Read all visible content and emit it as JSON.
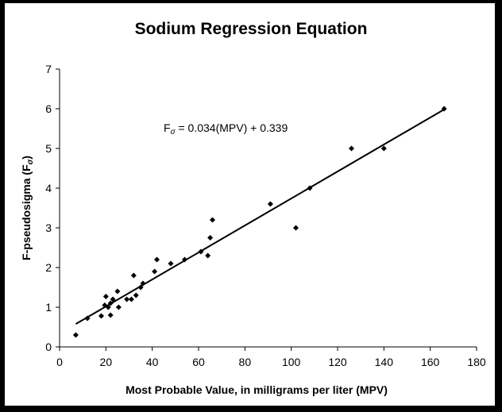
{
  "chart_data": {
    "type": "scatter",
    "title": "Sodium Regression Equation",
    "xlabel": "Most Probable Value, in milligrams per liter (MPV)",
    "ylabel_main": "F-pseudosigma (F",
    "ylabel_sub": "σ",
    "ylabel_close": ")",
    "xlim": [
      0,
      180
    ],
    "ylim": [
      0,
      7
    ],
    "xticks": [
      0,
      20,
      40,
      60,
      80,
      100,
      120,
      140,
      160,
      180
    ],
    "yticks": [
      0,
      1,
      2,
      3,
      4,
      5,
      6,
      7
    ],
    "grid": false,
    "legend": "none",
    "equation": {
      "prefix": "F",
      "sub": "σ",
      "rest": " = 0.034(MPV) + 0.339"
    },
    "regression": {
      "slope": 0.034,
      "intercept": 0.339,
      "x_range": [
        7,
        166
      ]
    },
    "points": [
      {
        "x": 7,
        "y": 0.3
      },
      {
        "x": 12,
        "y": 0.72
      },
      {
        "x": 18,
        "y": 0.78
      },
      {
        "x": 19.5,
        "y": 1.05
      },
      {
        "x": 20,
        "y": 1.27
      },
      {
        "x": 21,
        "y": 1.0
      },
      {
        "x": 22,
        "y": 0.8
      },
      {
        "x": 22,
        "y": 1.1
      },
      {
        "x": 23,
        "y": 1.2
      },
      {
        "x": 25,
        "y": 1.4
      },
      {
        "x": 25.5,
        "y": 1.0
      },
      {
        "x": 29,
        "y": 1.2
      },
      {
        "x": 31,
        "y": 1.2
      },
      {
        "x": 32,
        "y": 1.8
      },
      {
        "x": 33,
        "y": 1.3
      },
      {
        "x": 35,
        "y": 1.5
      },
      {
        "x": 36,
        "y": 1.6
      },
      {
        "x": 41,
        "y": 1.9
      },
      {
        "x": 42,
        "y": 2.2
      },
      {
        "x": 48,
        "y": 2.1
      },
      {
        "x": 54,
        "y": 2.2
      },
      {
        "x": 61,
        "y": 2.4
      },
      {
        "x": 64,
        "y": 2.3
      },
      {
        "x": 65,
        "y": 2.75
      },
      {
        "x": 66,
        "y": 3.2
      },
      {
        "x": 91,
        "y": 3.6
      },
      {
        "x": 102,
        "y": 3.0
      },
      {
        "x": 108,
        "y": 4.0
      },
      {
        "x": 126,
        "y": 5.0
      },
      {
        "x": 140,
        "y": 5.0
      },
      {
        "x": 166,
        "y": 6.0
      }
    ],
    "colors": {
      "marker": "#000000",
      "line": "#000000",
      "background": "#ffffff",
      "frame": "#000000"
    }
  }
}
